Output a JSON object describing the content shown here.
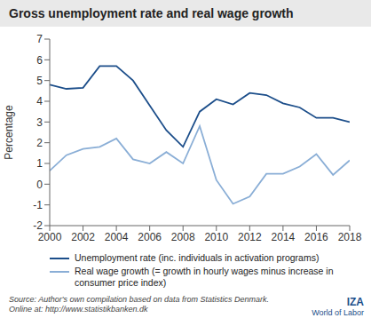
{
  "chart_data": {
    "type": "line",
    "title": "Gross unemployment rate and real wage growth",
    "y_label": "Percentage",
    "x": [
      2000,
      2001,
      2002,
      2003,
      2004,
      2005,
      2006,
      2007,
      2008,
      2009,
      2010,
      2011,
      2012,
      2013,
      2014,
      2015,
      2016,
      2017,
      2018
    ],
    "series": [
      {
        "name": "Unemployment rate (inc. individuals in activation programs)",
        "color": "#1c4e8a",
        "values": [
          4.8,
          4.6,
          4.65,
          5.7,
          5.7,
          5.0,
          3.8,
          2.6,
          1.8,
          3.5,
          4.1,
          3.85,
          4.4,
          4.3,
          3.9,
          3.7,
          3.2,
          3.2,
          3.0
        ]
      },
      {
        "name": "Real wage growth (= growth in hourly wages minus increase in consumer price index)",
        "color": "#8aaed6",
        "values": [
          0.65,
          1.4,
          1.7,
          1.8,
          2.2,
          1.2,
          1.0,
          1.55,
          1.0,
          2.8,
          0.2,
          -0.95,
          -0.6,
          0.5,
          0.5,
          0.85,
          1.45,
          0.45,
          1.15
        ]
      }
    ],
    "xlim": [
      2000,
      2018
    ],
    "xticks": [
      2000,
      2002,
      2004,
      2006,
      2008,
      2010,
      2012,
      2014,
      2016,
      2018
    ],
    "ylim": [
      -2,
      7
    ],
    "yticks": [
      -2,
      -1,
      0,
      1,
      2,
      3,
      4,
      5,
      6,
      7
    ],
    "grid": false,
    "source": [
      "Source: Author's own compilation based on data from Statistics Denmark.",
      "Online at: http://www.statistikbanken.dk"
    ],
    "logo": [
      "IZA",
      "World of Labor"
    ]
  }
}
